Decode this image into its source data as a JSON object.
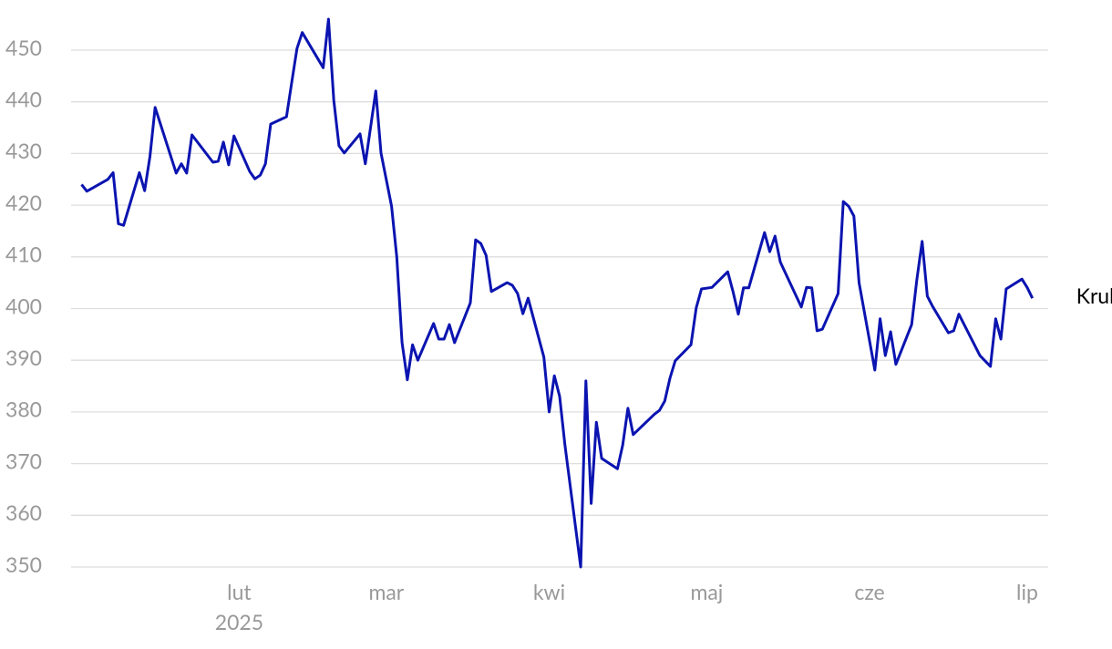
{
  "chart_data": {
    "type": "line",
    "x": [
      2,
      3,
      7,
      8,
      9,
      10,
      13,
      14,
      15,
      16,
      20,
      21,
      22,
      23,
      27,
      28,
      29,
      30,
      31,
      34,
      35,
      36,
      37,
      38,
      41,
      42,
      43,
      44,
      48,
      49,
      50,
      51,
      52,
      55,
      56,
      58,
      59,
      61,
      62,
      63,
      64,
      65,
      66,
      69,
      70,
      71,
      72,
      73,
      76,
      77,
      78,
      79,
      80,
      83,
      84,
      85,
      86,
      87,
      90,
      91,
      92,
      93,
      94,
      97,
      98,
      99,
      100,
      101,
      104,
      105,
      106,
      107,
      111,
      112,
      113,
      114,
      115,
      118,
      119,
      120,
      122,
      125,
      126,
      127,
      128,
      129,
      132,
      133,
      134,
      135,
      139,
      140,
      141,
      142,
      143,
      146,
      147,
      148,
      149,
      150,
      153,
      154,
      155,
      156,
      157,
      160,
      161,
      162,
      163,
      164,
      167,
      168,
      169,
      173,
      175,
      176,
      177,
      178,
      181,
      182,
      183
    ],
    "series": [
      {
        "name": "Kruk",
        "color": "#0b14b0",
        "values": [
          424,
          422.7,
          425,
          426.3,
          416.4,
          416.1,
          426.3,
          422.8,
          429.4,
          438.9,
          426.2,
          428,
          426.2,
          433.6,
          428.3,
          428.5,
          432.2,
          427.8,
          433.4,
          426.5,
          425.1,
          425.8,
          428,
          435.7,
          437.1,
          443.8,
          450.3,
          453.4,
          446.6,
          456,
          440.3,
          431.5,
          430.1,
          433.8,
          428,
          442.1,
          430.1,
          419.8,
          410,
          393.4,
          386.2,
          393,
          390,
          397.1,
          394.1,
          394.1,
          396.9,
          393.4,
          401.1,
          413.3,
          412.6,
          410.3,
          403.3,
          405,
          404.5,
          402.9,
          399,
          402,
          390.6,
          380,
          387,
          383,
          373.6,
          350,
          386,
          362.3,
          378,
          371,
          369,
          373.6,
          380.7,
          375.6,
          379.5,
          380.3,
          382.1,
          386.5,
          389.9,
          393,
          400.1,
          403.8,
          404.1,
          407.1,
          403.3,
          398.9,
          404,
          404,
          414.7,
          411,
          414,
          409,
          400.3,
          404.1,
          404,
          395.7,
          396,
          402.9,
          420.7,
          419.8,
          417.9,
          405,
          388.1,
          398,
          390.9,
          395.5,
          389.2,
          396.9,
          405.6,
          413,
          402.4,
          400.4,
          395.3,
          395.7,
          398.9,
          390.9,
          388.8,
          398,
          394.1,
          403.8,
          405.7,
          404.1,
          402
        ]
      }
    ],
    "xlim": [
      0,
      186
    ],
    "xticks": [
      {
        "value": 32,
        "label": "lut"
      },
      {
        "value": 60,
        "label": "mar"
      },
      {
        "value": 91,
        "label": "kwi"
      },
      {
        "value": 121,
        "label": "maj"
      },
      {
        "value": 152,
        "label": "cze"
      },
      {
        "value": 182,
        "label": "lip"
      }
    ],
    "year_label": "2025",
    "ylim": [
      350,
      450
    ],
    "yticks": [
      350,
      360,
      370,
      380,
      390,
      400,
      410,
      420,
      430,
      440,
      450
    ],
    "grid": true
  }
}
